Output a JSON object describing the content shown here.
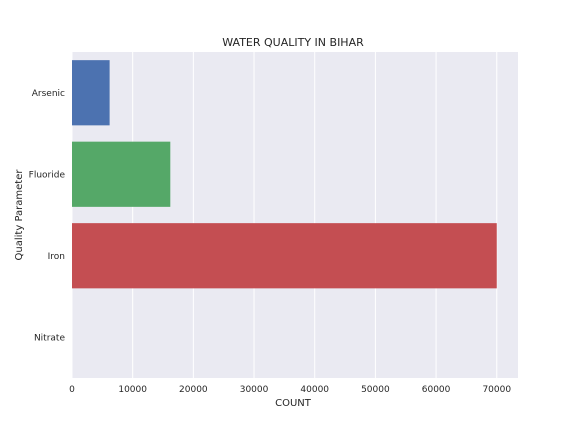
{
  "chart_data": {
    "type": "bar",
    "orientation": "horizontal",
    "title": "WATER QUALITY IN BIHAR",
    "xlabel": "COUNT",
    "ylabel": "Quality Parameter",
    "categories": [
      "Arsenic",
      "Fluoride",
      "Iron",
      "Nitrate"
    ],
    "values": [
      6200,
      16200,
      70000,
      0
    ],
    "colors": [
      "#4c72b0",
      "#55a868",
      "#c44e52",
      "#8172b2"
    ],
    "xlim": [
      0,
      73500
    ],
    "xticks": [
      0,
      10000,
      20000,
      30000,
      40000,
      50000,
      60000,
      70000
    ],
    "grid": true,
    "background": "#eaeaf2"
  }
}
